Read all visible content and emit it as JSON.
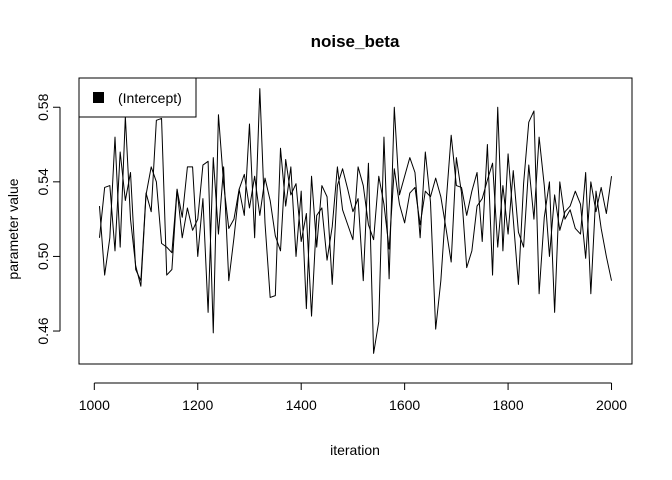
{
  "chart_data": {
    "type": "line",
    "title": "noise_beta",
    "xlabel": "iteration",
    "ylabel": "parameter value",
    "xlim": [
      1000,
      2000
    ],
    "ylim": [
      0.44,
      0.59
    ],
    "xticks": [
      1000,
      1200,
      1400,
      1600,
      1800,
      2000
    ],
    "xtick_labels": [
      "1000",
      "1200",
      "1400",
      "1600",
      "1800",
      "2000"
    ],
    "yticks": [
      0.46,
      0.5,
      0.54,
      0.58
    ],
    "ytick_labels": [
      "0.46",
      "0.50",
      "0.54",
      "0.58"
    ],
    "grid": false,
    "legend": {
      "position": "top-left",
      "entries": [
        "(Intercept)"
      ]
    },
    "x": [
      1010,
      1020,
      1030,
      1040,
      1050,
      1060,
      1070,
      1080,
      1090,
      1100,
      1110,
      1120,
      1130,
      1140,
      1150,
      1160,
      1170,
      1180,
      1190,
      1200,
      1210,
      1220,
      1230,
      1240,
      1250,
      1260,
      1270,
      1280,
      1290,
      1300,
      1310,
      1320,
      1330,
      1340,
      1350,
      1360,
      1370,
      1380,
      1390,
      1400,
      1410,
      1420,
      1430,
      1440,
      1450,
      1460,
      1470,
      1480,
      1490,
      1500,
      1510,
      1520,
      1530,
      1540,
      1550,
      1560,
      1570,
      1580,
      1590,
      1600,
      1610,
      1620,
      1630,
      1640,
      1650,
      1660,
      1670,
      1680,
      1690,
      1700,
      1710,
      1720,
      1730,
      1740,
      1750,
      1760,
      1770,
      1780,
      1790,
      1800,
      1810,
      1820,
      1830,
      1840,
      1850,
      1860,
      1870,
      1880,
      1890,
      1900,
      1910,
      1920,
      1930,
      1940,
      1950,
      1960,
      1970,
      1980,
      1990,
      2000
    ],
    "series": [
      {
        "values": [
          0.527,
          0.49,
          0.51,
          0.564,
          0.505,
          0.575,
          0.52,
          0.495,
          0.484,
          0.533,
          0.548,
          0.54,
          0.507,
          0.505,
          0.502,
          0.536,
          0.521,
          0.548,
          0.548,
          0.5,
          0.531,
          0.47,
          0.553,
          0.512,
          0.548,
          0.487,
          0.51,
          0.536,
          0.522,
          0.571,
          0.51,
          0.59,
          0.518,
          0.478,
          0.479,
          0.558,
          0.527,
          0.548,
          0.5,
          0.535,
          0.472,
          0.543,
          0.505,
          0.538,
          0.532,
          0.485,
          0.538,
          0.547,
          0.536,
          0.524,
          0.531,
          0.487,
          0.55,
          0.448,
          0.465,
          0.564,
          0.488,
          0.58,
          0.533,
          0.543,
          0.553,
          0.545,
          0.51,
          0.556,
          0.529,
          0.461,
          0.487,
          0.528,
          0.565,
          0.538,
          0.537,
          0.522,
          0.535,
          0.545,
          0.508,
          0.56,
          0.49,
          0.58,
          0.503,
          0.555,
          0.52,
          0.485,
          0.539,
          0.572,
          0.578,
          0.48,
          0.521,
          0.54,
          0.47,
          0.54,
          0.52,
          0.525,
          0.515,
          0.512,
          0.545,
          0.48,
          0.535,
          0.515,
          0.5,
          0.487
        ]
      },
      {
        "values": [
          0.51,
          0.537,
          0.538,
          0.503,
          0.556,
          0.53,
          0.545,
          0.493,
          0.487,
          0.534,
          0.524,
          0.573,
          0.574,
          0.49,
          0.493,
          0.536,
          0.51,
          0.526,
          0.514,
          0.52,
          0.549,
          0.551,
          0.459,
          0.576,
          0.539,
          0.515,
          0.52,
          0.536,
          0.544,
          0.526,
          0.543,
          0.522,
          0.542,
          0.53,
          0.511,
          0.503,
          0.552,
          0.533,
          0.539,
          0.508,
          0.523,
          0.468,
          0.522,
          0.526,
          0.498,
          0.516,
          0.548,
          0.525,
          0.517,
          0.509,
          0.548,
          0.538,
          0.517,
          0.509,
          0.543,
          0.528,
          0.504,
          0.547,
          0.528,
          0.518,
          0.534,
          0.537,
          0.517,
          0.535,
          0.532,
          0.542,
          0.532,
          0.515,
          0.497,
          0.553,
          0.534,
          0.494,
          0.503,
          0.527,
          0.531,
          0.541,
          0.55,
          0.505,
          0.538,
          0.512,
          0.546,
          0.513,
          0.505,
          0.549,
          0.52,
          0.564,
          0.538,
          0.5,
          0.533,
          0.514,
          0.524,
          0.527,
          0.535,
          0.528,
          0.499,
          0.54,
          0.524,
          0.537,
          0.523,
          0.543
        ]
      }
    ]
  }
}
